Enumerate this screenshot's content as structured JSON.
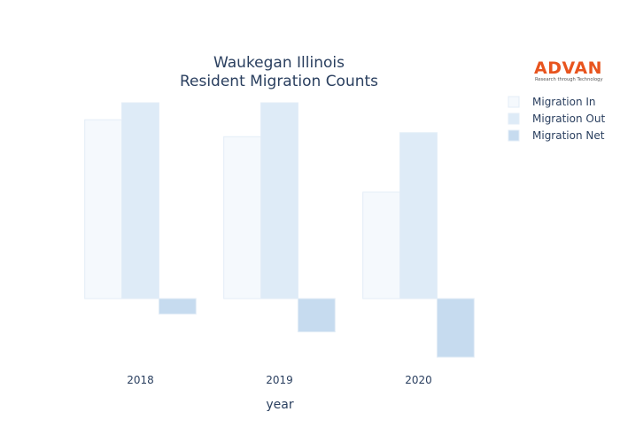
{
  "logo": {
    "name": "ADVAN",
    "tagline": "Research through Technology"
  },
  "chart_data": {
    "type": "bar",
    "title": [
      "Waukegan Illinois",
      "Resident Migration Counts"
    ],
    "xlabel": "year",
    "ylabel": "",
    "categories": [
      "2018",
      "2019",
      "2020"
    ],
    "ylim": [
      -1900,
      6300
    ],
    "grid": false,
    "legend_position": "top-right",
    "series": [
      {
        "name": "Migration In",
        "values": [
          5800,
          5250,
          3450
        ],
        "color": "#f5f9fd"
      },
      {
        "name": "Migration Out",
        "values": [
          6350,
          6350,
          5380
        ],
        "color": "#deebf7"
      },
      {
        "name": "Migration Net",
        "values": [
          -500,
          -1080,
          -1900
        ],
        "color": "#c6dbef"
      }
    ]
  }
}
